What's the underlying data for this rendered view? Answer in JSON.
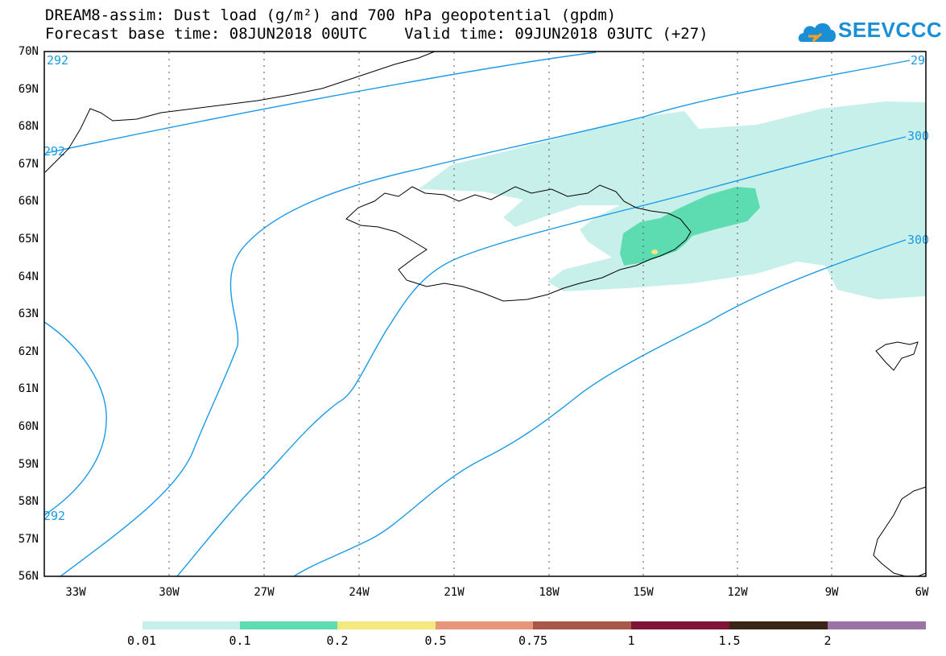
{
  "title_line1": "DREAM8-assim: Dust load (g/m²) and 700 hPa geopotential (gpdm)",
  "title_line2": "Forecast base time: 08JUN2018 00UTC    Valid time: 09JUN2018 03UTC (+27)",
  "logo_text": "SEEVCCC",
  "lat_labels": [
    "70N",
    "69N",
    "68N",
    "67N",
    "66N",
    "65N",
    "64N",
    "63N",
    "62N",
    "61N",
    "60N",
    "59N",
    "58N",
    "57N",
    "56N"
  ],
  "lon_labels": [
    "33W",
    "30W",
    "27W",
    "24W",
    "21W",
    "18W",
    "15W",
    "12W",
    "9W",
    "6W"
  ],
  "contour_labels": [
    "292",
    "292",
    "29",
    "300",
    "300",
    "292"
  ],
  "colorbar": {
    "labels": [
      "0.01",
      "0.1",
      "0.2",
      "0.5",
      "0.75",
      "1",
      "1.5",
      "2"
    ],
    "colors": [
      "#c8f0ea",
      "#5ddcb2",
      "#f4e880",
      "#e8967a",
      "#a85848",
      "#7e1438",
      "#3a2618",
      "#9a74a6"
    ]
  }
}
